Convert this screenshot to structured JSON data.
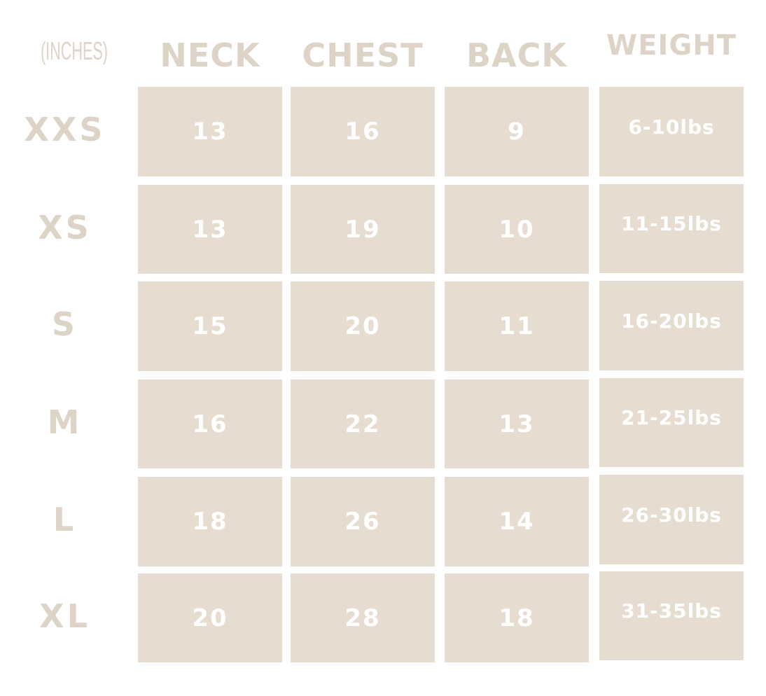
{
  "chart_data": {
    "type": "table",
    "units_label": "(INCHES)",
    "columns": [
      "NECK",
      "CHEST",
      "BACK",
      "WEIGHT"
    ],
    "rows": [
      {
        "size": "XXS",
        "values": [
          "13",
          "16",
          "9",
          "6-10lbs"
        ]
      },
      {
        "size": "XS",
        "values": [
          "13",
          "19",
          "10",
          "11-15lbs"
        ]
      },
      {
        "size": "S",
        "values": [
          "15",
          "20",
          "11",
          "16-20lbs"
        ]
      },
      {
        "size": "M",
        "values": [
          "16",
          "22",
          "13",
          "21-25lbs"
        ]
      },
      {
        "size": "L",
        "values": [
          "18",
          "26",
          "14",
          "26-30lbs"
        ]
      },
      {
        "size": "XL",
        "values": [
          "20",
          "28",
          "18",
          "31-35lbs"
        ]
      }
    ],
    "colors": {
      "cell": "#e6ddd0",
      "label": "#ddd3c7",
      "cell_text": "#ffffff"
    }
  }
}
